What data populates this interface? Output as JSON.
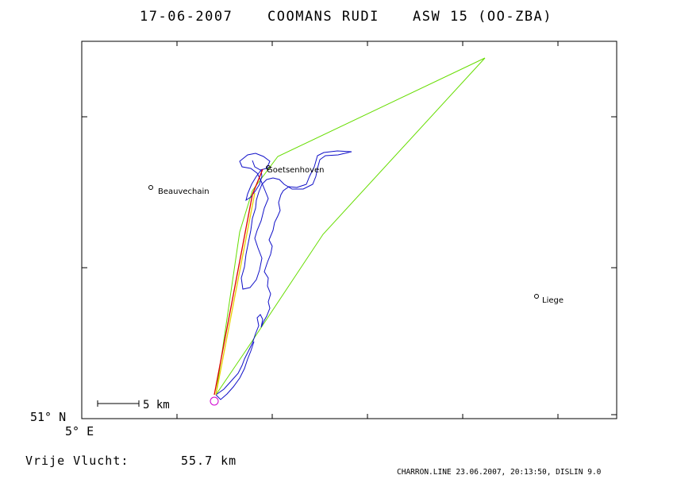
{
  "header": {
    "date": "17-06-2007",
    "pilot": "COOMANS RUDI",
    "glider": "ASW 15 (OO-ZBA)"
  },
  "map": {
    "places": [
      {
        "name": "Beauvechain",
        "kind": "city"
      },
      {
        "name": "Goetsenhoven",
        "kind": "airfield"
      },
      {
        "name": "Liege",
        "kind": "city"
      }
    ],
    "axis_labels": {
      "lat": "51° N",
      "lon": "5° E"
    },
    "scale_bar_label": "5 km",
    "colors": {
      "frame": "#000000",
      "track": "#1010c8",
      "task": "#66dd00",
      "free_flight": "#e00000",
      "start_circle": "#d000d0"
    }
  },
  "summary": {
    "label": "Vrije Vlucht:",
    "distance": "55.7 km"
  },
  "footer": "CHARRON.LINE 23.06.2007, 20:13:50, DISLIN 9.0"
}
